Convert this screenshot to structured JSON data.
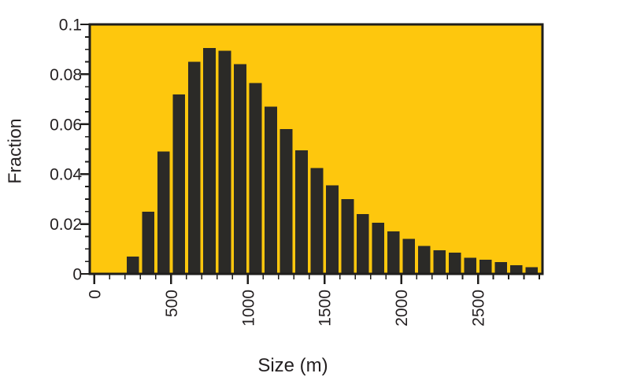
{
  "chart_data": {
    "type": "bar",
    "title": "",
    "xlabel": "Size (m)",
    "ylabel": "Fraction",
    "xlim": [
      -30,
      2920
    ],
    "ylim": [
      0,
      0.1
    ],
    "grid": false,
    "legend": "none",
    "bin_width": 100,
    "bar_fill_fraction": 0.8,
    "bins_start": [
      200,
      300,
      400,
      500,
      600,
      700,
      800,
      900,
      1000,
      1100,
      1200,
      1300,
      1400,
      1500,
      1600,
      1700,
      1800,
      1900,
      2000,
      2100,
      2200,
      2300,
      2400,
      2500,
      2600,
      2700,
      2800
    ],
    "values": [
      0.007,
      0.025,
      0.049,
      0.072,
      0.085,
      0.0905,
      0.0895,
      0.084,
      0.0765,
      0.067,
      0.058,
      0.0495,
      0.0425,
      0.0355,
      0.03,
      0.024,
      0.0205,
      0.017,
      0.014,
      0.0112,
      0.0095,
      0.0085,
      0.0065,
      0.0057,
      0.0047,
      0.0035,
      0.0027
    ],
    "x_major_ticks": [
      0,
      500,
      1000,
      1500,
      2000,
      2500
    ],
    "x_major_tick_labels": [
      "0",
      "500",
      "1000",
      "1500",
      "2000",
      "2500"
    ],
    "x_minor_tick_step": 100,
    "x_tick_label_rotation": -90,
    "y_major_ticks": [
      0,
      0.02,
      0.04,
      0.06,
      0.08,
      0.1
    ],
    "y_major_tick_labels": [
      "0",
      "0.02",
      "0.04",
      "0.06",
      "0.08",
      "0.1"
    ],
    "y_minor_tick_step": 0.005,
    "colors": {
      "plot_background": "#FEC70D",
      "bar": "#2B2A27",
      "axis": "#1F1E1C",
      "text": "#231F20",
      "figure_background": "#FFFFFF"
    }
  }
}
